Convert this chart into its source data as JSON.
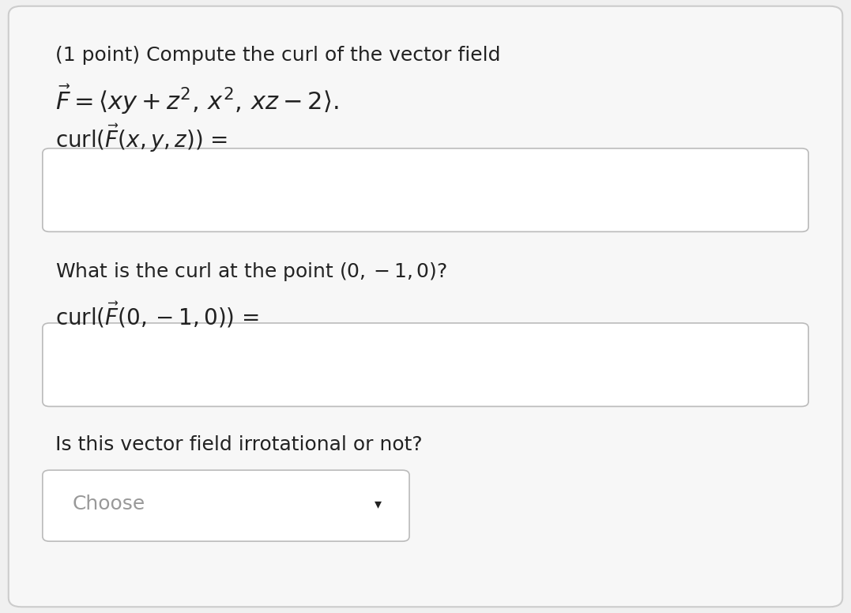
{
  "bg_color": "#f0f0f0",
  "card_color": "#f7f7f7",
  "card_border_color": "#cccccc",
  "input_box_color": "#ffffff",
  "input_box_border": "#bbbbbb",
  "dropdown_box_color": "#ffffff",
  "dropdown_border": "#bbbbbb",
  "text_color": "#222222",
  "title_text": "(1 point) Compute the curl of the vector field",
  "vector_field_latex": "$\\vec{F} = \\langle xy + z^2,\\, x^2,\\, xz - 2\\rangle.$",
  "curl_label1_latex": "$\\mathrm{curl}(\\vec{F}(x, y, z))$ =",
  "question2": "What is the curl at the point $(0, -1, 0)$?",
  "curl_label2_latex": "$\\mathrm{curl}(\\vec{F}(0, -1, 0))$ =",
  "question3": "Is this vector field irrotational or not?",
  "dropdown_text": "Choose",
  "dropdown_arrow": "▾",
  "font_size_title": 18,
  "font_size_math": 20,
  "font_size_text": 18,
  "font_size_dropdown": 18
}
